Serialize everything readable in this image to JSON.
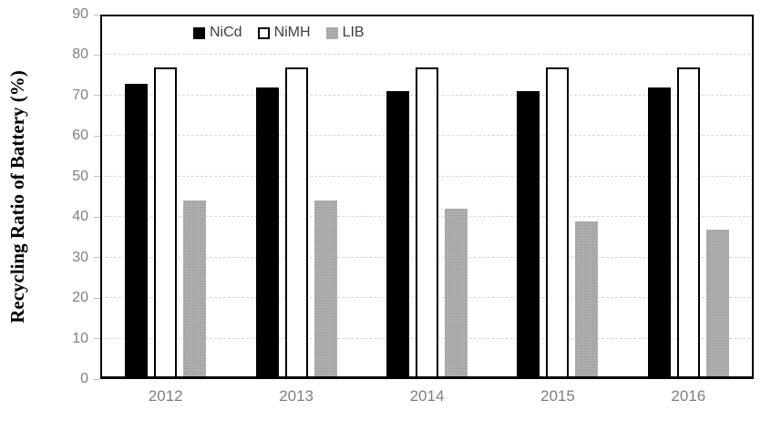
{
  "chart_data": {
    "type": "bar",
    "title": "",
    "xlabel": "",
    "ylabel": "Recycling Ratio of Battery (%)",
    "categories": [
      "2012",
      "2013",
      "2014",
      "2015",
      "2016"
    ],
    "series": [
      {
        "name": "NiCd",
        "values": [
          73,
          72,
          71,
          71,
          72
        ],
        "fill": "#000000",
        "border": "#000000",
        "pattern": "solid"
      },
      {
        "name": "NiMH",
        "values": [
          77,
          77,
          77,
          77,
          77
        ],
        "fill": "#ffffff",
        "border": "#000000",
        "pattern": "outlined"
      },
      {
        "name": "LIB",
        "values": [
          44,
          44,
          42,
          39,
          37
        ],
        "fill": "#adadad",
        "border": "#adadad",
        "pattern": "dots"
      }
    ],
    "ylim": [
      0,
      90
    ],
    "ytick_step": 10,
    "yticks": [
      0,
      10,
      20,
      30,
      40,
      50,
      60,
      70,
      80,
      90
    ],
    "grid": "horizontal-dashed",
    "legend_position": "top-inside",
    "colors": {
      "grid": "#d9d9d9",
      "axis_frame": "#000000",
      "tick_label": "#808080",
      "x_label": "#7f7f7f",
      "legend_text": "#404040",
      "background": "#ffffff"
    }
  }
}
